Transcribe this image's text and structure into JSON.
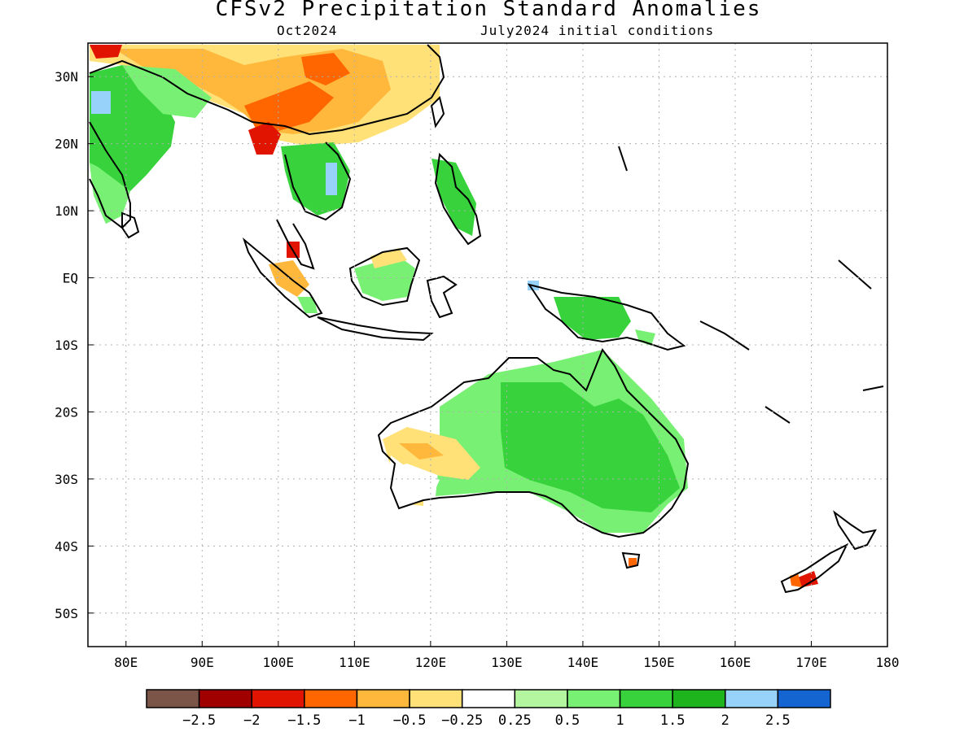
{
  "title": "CFSv2 Precipitation Standard Anomalies",
  "subtitle_left": "Oct2024",
  "subtitle_right": "July2024 initial conditions",
  "map": {
    "lon_range": [
      75,
      180
    ],
    "lat_range": [
      -55,
      35
    ],
    "lat_ticks": [
      {
        "value": 30,
        "label": "30N"
      },
      {
        "value": 20,
        "label": "20N"
      },
      {
        "value": 10,
        "label": "10N"
      },
      {
        "value": 0,
        "label": "EQ"
      },
      {
        "value": -10,
        "label": "10S"
      },
      {
        "value": -20,
        "label": "20S"
      },
      {
        "value": -30,
        "label": "30S"
      },
      {
        "value": -40,
        "label": "40S"
      },
      {
        "value": -50,
        "label": "50S"
      }
    ],
    "lon_ticks": [
      {
        "value": 80,
        "label": "80E"
      },
      {
        "value": 90,
        "label": "90E"
      },
      {
        "value": 100,
        "label": "100E"
      },
      {
        "value": 110,
        "label": "110E"
      },
      {
        "value": 120,
        "label": "120E"
      },
      {
        "value": 130,
        "label": "130E"
      },
      {
        "value": 140,
        "label": "140E"
      },
      {
        "value": 150,
        "label": "150E"
      },
      {
        "value": 160,
        "label": "160E"
      },
      {
        "value": 170,
        "label": "170E"
      },
      {
        "value": 180,
        "label": "180"
      }
    ]
  },
  "colorbar": {
    "colors": [
      "#7a5548",
      "#a00000",
      "#e01400",
      "#ff6600",
      "#ffb83c",
      "#ffe178",
      "#ffffff",
      "#b4f5a0",
      "#78f073",
      "#37d23c",
      "#1eb41e",
      "#96d2fa",
      "#1464d2"
    ],
    "labels": [
      "−2.5",
      "−2",
      "−1.5",
      "−1",
      "−0.5",
      "−0.25",
      "0.25",
      "0.5",
      "1",
      "1.5",
      "2",
      "2.5"
    ]
  }
}
